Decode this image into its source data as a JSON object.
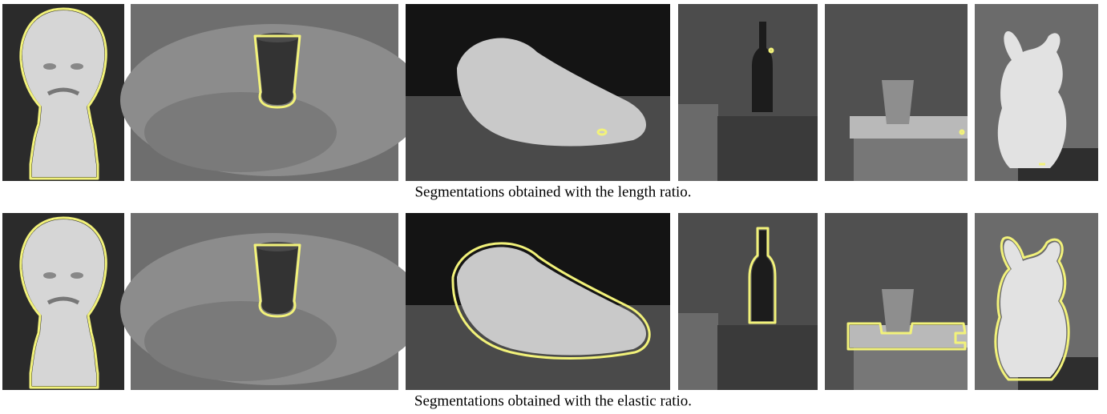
{
  "rows": [
    {
      "caption": "Segmentations obtained with the length ratio."
    },
    {
      "caption": "Segmentations obtained with the elastic ratio."
    }
  ]
}
